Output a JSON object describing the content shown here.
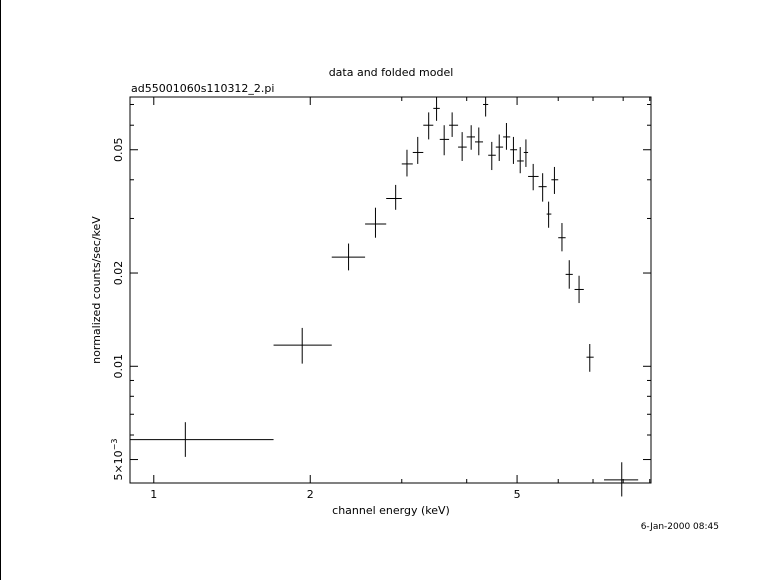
{
  "page": {
    "title": "data and folded model",
    "filename": "ad55001060s110312_2.pi",
    "timestamp": "6-Jan-2000 08:45"
  },
  "chart_data": {
    "type": "scatter",
    "title": "data and folded model",
    "subtitle": "ad55001060s110312_2.pi",
    "xlabel": "channel energy (keV)",
    "ylabel": "normalized counts/sec/keV",
    "x_scale": "log",
    "y_scale": "log",
    "xlim": [
      0.9,
      9.05
    ],
    "ylim": [
      0.0042,
      0.074
    ],
    "x_ticks": [
      {
        "value": 1,
        "label": "1"
      },
      {
        "value": 2,
        "label": "2"
      },
      {
        "value": 5,
        "label": "5"
      }
    ],
    "y_ticks": [
      {
        "value": 0.005,
        "label": "5×10",
        "exp": "−3"
      },
      {
        "value": 0.01,
        "label": "0.01"
      },
      {
        "value": 0.02,
        "label": "0.02"
      },
      {
        "value": 0.05,
        "label": "0.05"
      }
    ],
    "grid": false,
    "color": "#000000",
    "series": [
      {
        "points": [
          {
            "x": 1.15,
            "xlo": 0.9,
            "xhi": 1.7,
            "y": 0.0058,
            "ylo": 0.0051,
            "yhi": 0.0066
          },
          {
            "x": 1.93,
            "xlo": 1.7,
            "xhi": 2.2,
            "y": 0.0117,
            "ylo": 0.0102,
            "yhi": 0.0133
          },
          {
            "x": 2.37,
            "xlo": 2.2,
            "xhi": 2.55,
            "y": 0.0225,
            "ylo": 0.0204,
            "yhi": 0.0249
          },
          {
            "x": 2.67,
            "xlo": 2.55,
            "xhi": 2.8,
            "y": 0.0288,
            "ylo": 0.026,
            "yhi": 0.0325
          },
          {
            "x": 2.92,
            "xlo": 2.8,
            "xhi": 3.0,
            "y": 0.0348,
            "ylo": 0.032,
            "yhi": 0.0385
          },
          {
            "x": 3.07,
            "xlo": 3.0,
            "xhi": 3.15,
            "y": 0.045,
            "ylo": 0.041,
            "yhi": 0.05
          },
          {
            "x": 3.22,
            "xlo": 3.15,
            "xhi": 3.3,
            "y": 0.049,
            "ylo": 0.045,
            "yhi": 0.055
          },
          {
            "x": 3.38,
            "xlo": 3.3,
            "xhi": 3.45,
            "y": 0.06,
            "ylo": 0.054,
            "yhi": 0.066
          },
          {
            "x": 3.5,
            "xlo": 3.45,
            "xhi": 3.55,
            "y": 0.068,
            "ylo": 0.062,
            "yhi": 0.074
          },
          {
            "x": 3.62,
            "xlo": 3.55,
            "xhi": 3.7,
            "y": 0.054,
            "ylo": 0.048,
            "yhi": 0.06
          },
          {
            "x": 3.75,
            "xlo": 3.7,
            "xhi": 3.85,
            "y": 0.06,
            "ylo": 0.055,
            "yhi": 0.066
          },
          {
            "x": 3.92,
            "xlo": 3.85,
            "xhi": 4.0,
            "y": 0.051,
            "ylo": 0.046,
            "yhi": 0.057
          },
          {
            "x": 4.08,
            "xlo": 4.0,
            "xhi": 4.15,
            "y": 0.055,
            "ylo": 0.05,
            "yhi": 0.06
          },
          {
            "x": 4.22,
            "xlo": 4.15,
            "xhi": 4.3,
            "y": 0.053,
            "ylo": 0.048,
            "yhi": 0.059
          },
          {
            "x": 4.35,
            "xlo": 4.3,
            "xhi": 4.4,
            "y": 0.07,
            "ylo": 0.064,
            "yhi": 0.074
          },
          {
            "x": 4.47,
            "xlo": 4.4,
            "xhi": 4.55,
            "y": 0.048,
            "ylo": 0.043,
            "yhi": 0.053
          },
          {
            "x": 4.62,
            "xlo": 4.55,
            "xhi": 4.7,
            "y": 0.051,
            "ylo": 0.046,
            "yhi": 0.056
          },
          {
            "x": 4.77,
            "xlo": 4.7,
            "xhi": 4.85,
            "y": 0.055,
            "ylo": 0.05,
            "yhi": 0.061
          },
          {
            "x": 4.92,
            "xlo": 4.85,
            "xhi": 5.0,
            "y": 0.05,
            "ylo": 0.045,
            "yhi": 0.055
          },
          {
            "x": 5.07,
            "xlo": 5.0,
            "xhi": 5.15,
            "y": 0.046,
            "ylo": 0.042,
            "yhi": 0.051
          },
          {
            "x": 5.2,
            "xlo": 5.15,
            "xhi": 5.25,
            "y": 0.049,
            "ylo": 0.044,
            "yhi": 0.054
          },
          {
            "x": 5.37,
            "xlo": 5.25,
            "xhi": 5.5,
            "y": 0.041,
            "ylo": 0.037,
            "yhi": 0.045
          },
          {
            "x": 5.6,
            "xlo": 5.5,
            "xhi": 5.7,
            "y": 0.038,
            "ylo": 0.034,
            "yhi": 0.042
          },
          {
            "x": 5.75,
            "xlo": 5.7,
            "xhi": 5.82,
            "y": 0.031,
            "ylo": 0.028,
            "yhi": 0.034
          },
          {
            "x": 5.9,
            "xlo": 5.82,
            "xhi": 6.0,
            "y": 0.04,
            "ylo": 0.036,
            "yhi": 0.044
          },
          {
            "x": 6.1,
            "xlo": 6.0,
            "xhi": 6.2,
            "y": 0.026,
            "ylo": 0.0235,
            "yhi": 0.029
          },
          {
            "x": 6.3,
            "xlo": 6.2,
            "xhi": 6.4,
            "y": 0.0198,
            "ylo": 0.0178,
            "yhi": 0.022
          },
          {
            "x": 6.58,
            "xlo": 6.45,
            "xhi": 6.72,
            "y": 0.0177,
            "ylo": 0.016,
            "yhi": 0.0196
          },
          {
            "x": 6.9,
            "xlo": 6.8,
            "xhi": 7.02,
            "y": 0.0107,
            "ylo": 0.0096,
            "yhi": 0.0118
          },
          {
            "x": 7.95,
            "xlo": 7.35,
            "xhi": 8.55,
            "y": 0.0043,
            "ylo": 0.0038,
            "yhi": 0.0049
          }
        ]
      }
    ]
  }
}
